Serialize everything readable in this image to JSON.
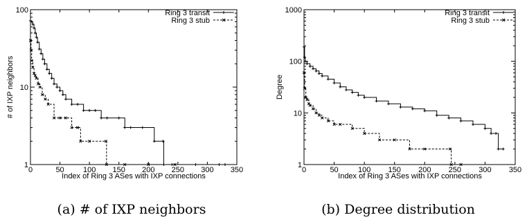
{
  "chart_data": [
    {
      "type": "line",
      "caption": "(a) # of IXP neighbors",
      "xlabel": "Index of Ring 3 ASes with IXP connections",
      "ylabel": "# of IXP neighbors",
      "xlim": [
        0,
        350
      ],
      "ylim": [
        1,
        100
      ],
      "yscale": "log",
      "xticks": [
        0,
        50,
        100,
        150,
        200,
        250,
        300,
        350
      ],
      "yticks": [
        1,
        10,
        100
      ],
      "grid": false,
      "legend_position": "top-right",
      "series": [
        {
          "name": "Ring 3 transit",
          "marker": "plus",
          "x": [
            0,
            2,
            4,
            6,
            8,
            10,
            12,
            15,
            18,
            21,
            24,
            28,
            32,
            36,
            40,
            45,
            50,
            55,
            60,
            70,
            80,
            90,
            100,
            110,
            120,
            130,
            150,
            160,
            170,
            190,
            210,
            225,
            226,
            240,
            280,
            320,
            330
          ],
          "y": [
            72,
            70,
            65,
            58,
            50,
            44,
            38,
            31,
            27,
            23,
            20,
            17,
            15,
            13,
            11,
            10,
            9,
            8,
            7,
            6,
            6,
            5,
            5,
            5,
            4,
            4,
            4,
            3,
            3,
            3,
            2,
            2,
            1,
            1,
            1,
            1,
            1
          ]
        },
        {
          "name": "Ring 3 stub",
          "marker": "x",
          "x": [
            0,
            1,
            2,
            4,
            6,
            8,
            10,
            13,
            16,
            20,
            25,
            30,
            40,
            50,
            60,
            70,
            80,
            85,
            100,
            128,
            129,
            160,
            200,
            245
          ],
          "y": [
            40,
            30,
            22,
            18,
            15,
            14,
            13,
            11,
            10,
            8,
            7,
            6,
            4,
            4,
            4,
            3,
            3,
            2,
            2,
            2,
            1,
            1,
            1,
            1
          ]
        }
      ]
    },
    {
      "type": "line",
      "caption": "(b) Degree distribution",
      "xlabel": "Index of Ring 3 ASes with IXP connections",
      "ylabel": "Degree",
      "xlim": [
        0,
        350
      ],
      "ylim": [
        1,
        1000
      ],
      "yscale": "log",
      "xticks": [
        0,
        50,
        100,
        150,
        200,
        250,
        300,
        350
      ],
      "yticks": [
        1,
        10,
        100,
        1000
      ],
      "grid": false,
      "legend_position": "top-right",
      "series": [
        {
          "name": "Ring 3 transit",
          "marker": "plus",
          "x": [
            0,
            1,
            2,
            5,
            10,
            15,
            20,
            25,
            30,
            40,
            50,
            60,
            70,
            80,
            90,
            100,
            120,
            140,
            160,
            180,
            200,
            220,
            240,
            260,
            280,
            300,
            310,
            318,
            322,
            330
          ],
          "y": [
            190,
            120,
            100,
            90,
            80,
            72,
            65,
            58,
            52,
            45,
            38,
            32,
            28,
            25,
            22,
            20,
            17,
            15,
            13,
            12,
            11,
            9,
            8,
            7,
            6,
            5,
            4,
            4,
            2,
            2
          ]
        },
        {
          "name": "Ring 3 stub",
          "marker": "x",
          "x": [
            0,
            1,
            3,
            5,
            8,
            10,
            15,
            20,
            25,
            30,
            40,
            50,
            60,
            80,
            100,
            125,
            150,
            175,
            200,
            242,
            244,
            260
          ],
          "y": [
            60,
            30,
            20,
            18,
            15,
            14,
            12,
            10,
            9,
            8,
            7,
            6,
            6,
            5,
            4,
            3,
            3,
            2,
            2,
            2,
            1,
            1
          ]
        }
      ]
    }
  ]
}
